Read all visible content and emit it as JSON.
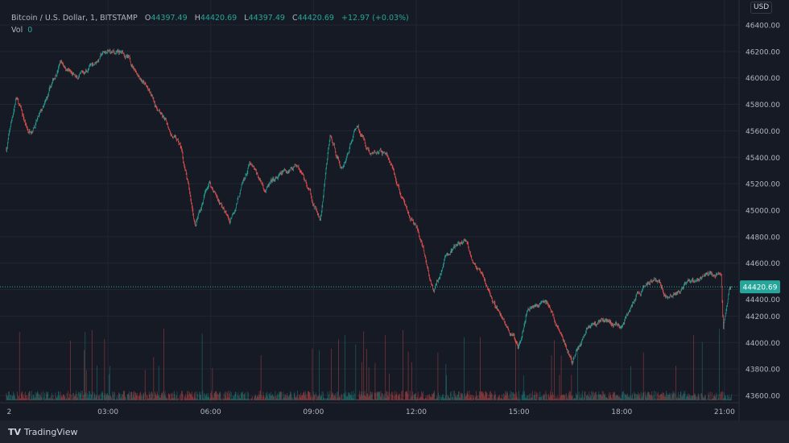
{
  "header": {
    "symbol": "Bitcoin / U.S. Dollar, 1, BITSTAMP",
    "o_label": "O",
    "open": "44397.49",
    "h_label": "H",
    "high": "44420.69",
    "l_label": "L",
    "low": "44397.49",
    "c_label": "C",
    "close": "44420.69",
    "change": "+12.97 (+0.03%)",
    "vol_label": "Vol",
    "vol": "0"
  },
  "currency": "USD",
  "branding": "TradingView",
  "colors": {
    "up": "#26a69a",
    "down": "#ef5350",
    "background": "#161a25",
    "grid": "#222632"
  },
  "chart_data": {
    "type": "candlestick",
    "interval": "1 minute",
    "ylim": [
      43560,
      46450
    ],
    "y_ticks": [
      "46400.00",
      "46200.00",
      "46000.00",
      "45800.00",
      "45600.00",
      "45400.00",
      "45200.00",
      "45000.00",
      "44800.00",
      "44600.00",
      "44400.00",
      "44200.00",
      "44000.00",
      "43800.00",
      "43600.00"
    ],
    "x_ticks": [
      "2",
      "03:00",
      "06:00",
      "09:00",
      "12:00",
      "15:00",
      "18:00",
      "21:00"
    ],
    "last_price": "44420.69",
    "grid": true,
    "price_path": [
      [
        "00:02",
        45463
      ],
      [
        "00:19",
        45858
      ],
      [
        "00:40",
        45585
      ],
      [
        "01:08",
        45767
      ],
      [
        "01:37",
        46132
      ],
      [
        "02:05",
        45980
      ],
      [
        "02:54",
        46193
      ],
      [
        "03:29",
        46175
      ],
      [
        "03:58",
        46010
      ],
      [
        "04:26",
        45767
      ],
      [
        "05:08",
        45463
      ],
      [
        "05:33",
        44885
      ],
      [
        "05:57",
        45219
      ],
      [
        "06:33",
        44915
      ],
      [
        "07:08",
        45341
      ],
      [
        "07:36",
        45158
      ],
      [
        "08:33",
        45371
      ],
      [
        "09:12",
        44915
      ],
      [
        "09:29",
        45554
      ],
      [
        "09:50",
        45310
      ],
      [
        "10:16",
        45645
      ],
      [
        "10:40",
        45432
      ],
      [
        "11:08",
        45432
      ],
      [
        "11:36",
        45067
      ],
      [
        "12:04",
        44824
      ],
      [
        "12:30",
        44367
      ],
      [
        "12:54",
        44672
      ],
      [
        "13:26",
        44763
      ],
      [
        "14:11",
        44337
      ],
      [
        "14:58",
        43972
      ],
      [
        "15:15",
        44276
      ],
      [
        "15:50",
        44306
      ],
      [
        "16:33",
        43850
      ],
      [
        "17:01",
        44124
      ],
      [
        "17:29",
        44185
      ],
      [
        "17:57",
        44124
      ],
      [
        "18:26",
        44337
      ],
      [
        "18:57",
        44519
      ],
      [
        "19:22",
        44337
      ],
      [
        "20:19",
        44489
      ],
      [
        "20:54",
        44519
      ],
      [
        "20:58",
        44124
      ],
      [
        "21:08",
        44397
      ],
      [
        "21:12",
        44420.69
      ]
    ]
  }
}
